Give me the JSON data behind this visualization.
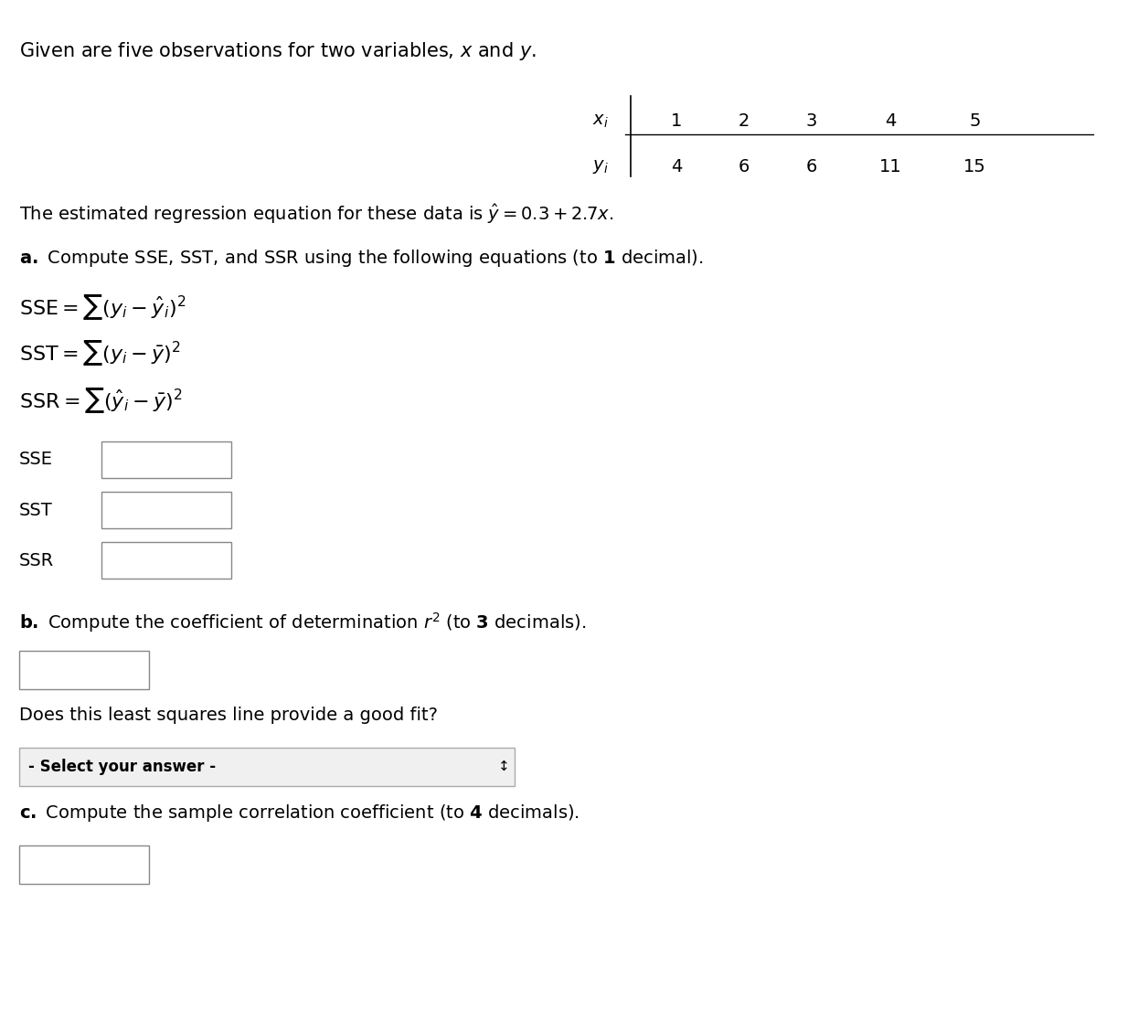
{
  "title_text": "Given are five observations for two variables, $x$ and $y$.",
  "table_x_label": "$x_i$",
  "table_y_label": "$y_i$",
  "x_values": [
    1,
    2,
    3,
    4,
    5
  ],
  "y_values": [
    4,
    6,
    6,
    11,
    15
  ],
  "regression_text": "The estimated regression equation for these data is $\\hat{y} = 0.3 + 2.7x$.",
  "part_a_text": "**a.** Compute SSE, SST, and SSR using the following equations (to 1 decimal).",
  "sse_formula": "$\\mathrm{SSE} = \\sum (y_i - \\hat{y}_i)^2$",
  "sst_formula": "$\\mathrm{SST} = \\sum (y_i - \\bar{y})^2$",
  "ssr_formula": "$\\mathrm{SSR} = \\sum (\\hat{y}_i - \\bar{y})^2$",
  "part_b_text": "**b.** Compute the coefficient of determination $r^2$ (to 3 decimals).",
  "does_fit_text": "Does this least squares line provide a good fit?",
  "select_answer_text": "- Select your answer -",
  "part_c_text": "**c.** Compute the sample correlation coefficient (to 4 decimals).",
  "background_color": "#ffffff",
  "text_color": "#000000",
  "box_edge_color": "#888888",
  "select_bg_color": "#f0f0f0",
  "select_border_color": "#aaaaaa"
}
